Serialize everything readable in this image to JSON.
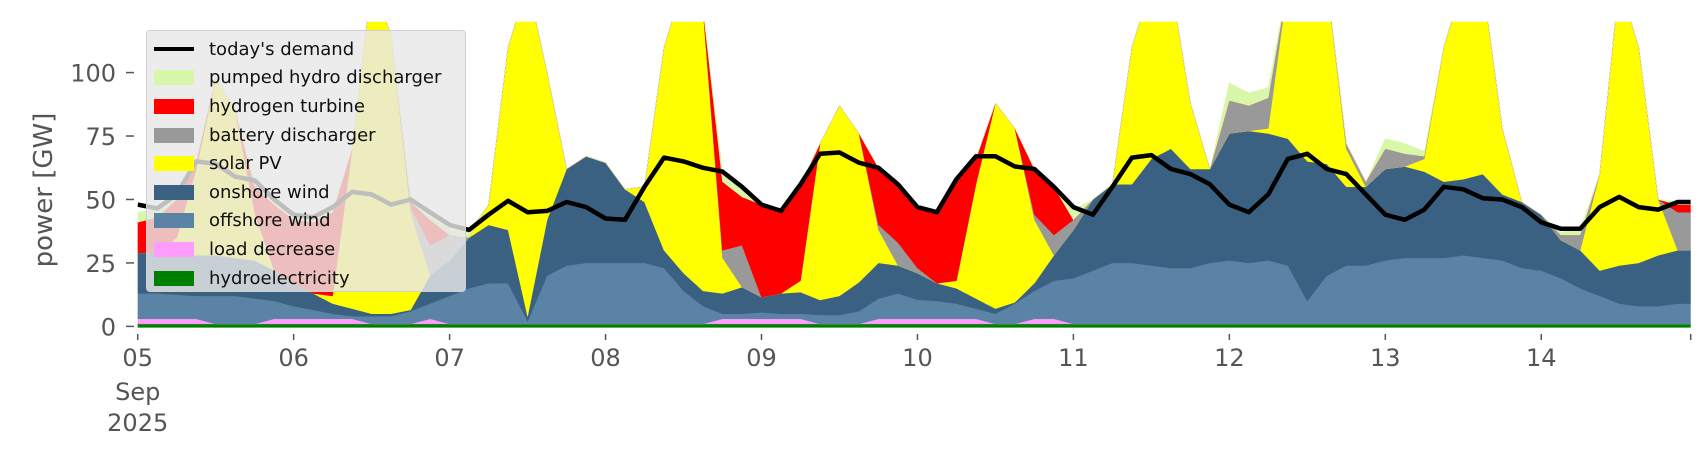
{
  "chart_data": {
    "type": "area",
    "title": "",
    "xlabel": "",
    "ylabel": "power [GW]",
    "ylim": [
      0,
      120
    ],
    "xlim_hours": [
      0,
      239
    ],
    "step_hours": 3,
    "start_date": "2025-09-05",
    "y_ticks": [
      0,
      25,
      50,
      75,
      100
    ],
    "y_tick_labels": [
      "0",
      "25",
      "50",
      "75",
      "100"
    ],
    "x_ticks_hours": [
      0,
      24,
      48,
      72,
      96,
      120,
      144,
      168,
      192,
      216
    ],
    "x_tick_labels": [
      "05",
      "06",
      "07",
      "08",
      "09",
      "10",
      "11",
      "12",
      "13",
      "14"
    ],
    "x_first_tick_sublabels": [
      "Sep",
      "2025"
    ],
    "grid": false,
    "legend_placement": "top-left",
    "legend": [
      {
        "label": "today's demand",
        "type": "line",
        "color": "#000000"
      },
      {
        "label": "pumped hydro discharger",
        "type": "patch",
        "color": "#d9f7a8"
      },
      {
        "label": "hydrogen turbine",
        "type": "patch",
        "color": "#ff0000"
      },
      {
        "label": "battery discharger",
        "type": "patch",
        "color": "#999999"
      },
      {
        "label": "solar PV",
        "type": "patch",
        "color": "#ffff00"
      },
      {
        "label": "onshore wind",
        "type": "patch",
        "color": "#3b6182"
      },
      {
        "label": "offshore wind",
        "type": "patch",
        "color": "#5b83a5"
      },
      {
        "label": "load decrease",
        "type": "patch",
        "color": "#ff9cff"
      },
      {
        "label": "hydroelectricity",
        "type": "patch",
        "color": "#008000"
      }
    ],
    "stacked_series": [
      {
        "name": "hydroelectricity",
        "color": "#008000",
        "values": [
          1,
          1,
          1,
          1,
          1,
          1,
          1,
          1,
          1,
          1,
          1,
          1,
          1,
          1,
          1,
          1,
          1,
          1,
          1,
          1,
          1,
          1,
          1,
          1,
          1,
          1,
          1,
          1,
          1,
          1,
          1,
          1,
          1,
          1,
          1,
          1,
          1,
          1,
          1,
          1,
          1,
          1,
          1,
          1,
          1,
          1,
          1,
          1,
          1,
          1,
          1,
          1,
          1,
          1,
          1,
          1,
          1,
          1,
          1,
          1,
          1,
          1,
          1,
          1,
          1,
          1,
          1,
          1,
          1,
          1,
          1,
          1,
          1,
          1,
          1,
          1,
          1,
          1,
          1,
          1
        ]
      },
      {
        "name": "load decrease",
        "color": "#ff9cff",
        "values": [
          2,
          2,
          2,
          2,
          0,
          0,
          0,
          2,
          2,
          2,
          2,
          2,
          0,
          0,
          0,
          2,
          0,
          0,
          0,
          0,
          0,
          0,
          0,
          0,
          0,
          0,
          0,
          0,
          0,
          0,
          2,
          2,
          2,
          2,
          2,
          0,
          0,
          0,
          2,
          2,
          2,
          2,
          2,
          2,
          0,
          0,
          2,
          2,
          0,
          0,
          0,
          0,
          0,
          0,
          0,
          0,
          0,
          0,
          0,
          0,
          0,
          0,
          0,
          0,
          0,
          0,
          0,
          0,
          0,
          0,
          0,
          0,
          0,
          0,
          0,
          0,
          0,
          0,
          0,
          0
        ]
      },
      {
        "name": "offshore wind",
        "color": "#5b83a5",
        "values": [
          10,
          10,
          9.5,
          9,
          11,
          11,
          10,
          7,
          5,
          3.5,
          2,
          1,
          3,
          3,
          5,
          6,
          11,
          14,
          16,
          16,
          1,
          19,
          23,
          24,
          24,
          24,
          24,
          22,
          13,
          7,
          2,
          2,
          2.5,
          2,
          2,
          3.5,
          3.5,
          5,
          8,
          10,
          7.5,
          7,
          6,
          4,
          4,
          8,
          11,
          15,
          18,
          21,
          24,
          24,
          23,
          22,
          22,
          24,
          25,
          24,
          25,
          23,
          9,
          19,
          23,
          23,
          25,
          26,
          26,
          26,
          27,
          26,
          25,
          22,
          21,
          18,
          14,
          11,
          8,
          7,
          7,
          8
        ]
      },
      {
        "name": "onshore wind",
        "color": "#3b6182",
        "values": [
          16,
          16,
          15.5,
          16,
          16,
          15,
          15,
          12,
          9,
          6.5,
          4,
          3,
          1,
          1,
          0.5,
          11,
          14,
          20,
          23,
          21,
          2,
          22,
          38,
          42,
          39.5,
          29,
          24,
          7,
          7,
          6,
          8,
          10.5,
          6,
          8,
          8.5,
          5.9,
          7.5,
          11.4,
          14,
          11,
          10.5,
          7,
          6,
          4,
          2,
          0.5,
          3,
          10,
          19,
          28,
          31,
          31,
          42,
          47,
          39,
          37,
          50,
          52,
          50,
          50,
          55,
          44,
          31,
          31,
          36,
          36,
          34,
          30,
          30,
          33,
          26,
          26,
          22,
          15,
          15,
          10,
          15,
          17,
          20,
          21
        ]
      },
      {
        "name": "solar PV",
        "color": "#ffff00",
        "values": [
          0,
          0,
          7,
          34,
          70,
          58,
          19,
          0,
          0,
          0,
          3,
          63,
          130,
          110,
          38.5,
          0,
          0,
          0,
          8,
          72,
          131,
          58,
          0,
          0,
          0,
          0,
          6,
          80,
          114,
          111,
          14,
          0,
          0,
          0,
          4.5,
          61.6,
          75,
          58.6,
          13,
          0,
          0,
          0,
          3,
          45,
          81,
          68.5,
          25,
          0,
          0,
          0,
          0,
          54,
          69,
          65,
          26,
          0,
          0,
          0,
          2,
          61,
          70,
          71,
          15,
          0,
          0,
          0,
          5,
          53,
          77,
          75,
          26,
          0,
          0,
          0,
          0,
          38,
          111,
          85,
          22,
          0
        ]
      },
      {
        "name": "battery discharger",
        "color": "#999999",
        "values": [
          0,
          0,
          0,
          0,
          0,
          0,
          0,
          0,
          0,
          0,
          0,
          0,
          0,
          0,
          2,
          12,
          10,
          0,
          0,
          0,
          0,
          0,
          0,
          0,
          0,
          0,
          0,
          0,
          0,
          0,
          3,
          16.5,
          0,
          0,
          0,
          0,
          0,
          0,
          2,
          9,
          2,
          0,
          0,
          0,
          0,
          0,
          2,
          8,
          4,
          0,
          0,
          0,
          0,
          0,
          0,
          0,
          13,
          10,
          12,
          0,
          0,
          0,
          2,
          2,
          8,
          5,
          1,
          0,
          0,
          0,
          0,
          0,
          0,
          2,
          6,
          0,
          0,
          0,
          0,
          15
        ]
      },
      {
        "name": "hydrogen turbine",
        "color": "#ff0000",
        "values": [
          12,
          14,
          15,
          3,
          0,
          0,
          10,
          26,
          25,
          28,
          33,
          0,
          0,
          0,
          2,
          10,
          0,
          0,
          0,
          0,
          0,
          0,
          0,
          0,
          0,
          0,
          0,
          0,
          0,
          0,
          27,
          19,
          36.5,
          32.5,
          38,
          0,
          0,
          0,
          22.5,
          23,
          24,
          28,
          40,
          10,
          0,
          0,
          18,
          19,
          0,
          0,
          0,
          0,
          0,
          0,
          0,
          0,
          0,
          0,
          0,
          0,
          0,
          0,
          0,
          0,
          0,
          0,
          0,
          0,
          0,
          0,
          0,
          0,
          0,
          0,
          0,
          0,
          0,
          0,
          0,
          3
        ]
      },
      {
        "name": "pumped hydro discharger",
        "color": "#d9f7a8",
        "values": [
          4,
          3,
          2,
          1,
          0,
          0,
          2,
          2,
          2,
          2,
          2,
          0,
          0,
          0,
          1,
          2,
          4,
          3,
          0,
          0,
          0,
          0,
          0,
          0,
          0,
          0,
          0,
          0,
          0,
          0,
          4,
          4,
          0,
          0,
          0,
          0,
          0,
          0,
          0,
          0,
          0,
          0,
          0,
          0,
          0,
          0,
          0,
          0,
          4,
          0,
          0,
          0,
          0,
          0,
          0,
          0,
          7,
          5,
          4,
          0,
          0,
          0,
          0,
          0,
          4,
          4,
          2,
          0,
          0,
          0,
          0,
          0,
          0,
          1,
          2.5,
          0,
          0,
          0,
          0,
          1
        ]
      }
    ],
    "demand": {
      "name": "today's demand",
      "color": "#000000",
      "values": [
        48,
        46.5,
        52,
        65,
        64,
        59,
        57.5,
        50,
        44,
        43,
        47,
        53,
        52,
        48,
        50,
        45,
        40,
        38,
        44,
        49.5,
        45,
        45.5,
        49,
        47,
        42.5,
        42,
        55,
        66.5,
        65,
        62.5,
        61,
        55,
        48,
        45.5,
        56,
        68,
        68.5,
        64.5,
        62.5,
        56,
        47,
        45,
        58,
        67,
        67,
        63,
        62,
        55,
        47,
        44,
        55,
        66.5,
        67.5,
        62,
        60,
        56,
        48,
        45,
        52,
        66,
        68,
        62,
        60,
        52,
        44,
        42,
        46,
        55,
        54,
        50.5,
        50,
        47,
        41,
        38.5,
        38.5,
        47,
        51,
        47,
        46,
        49
      ]
    }
  }
}
